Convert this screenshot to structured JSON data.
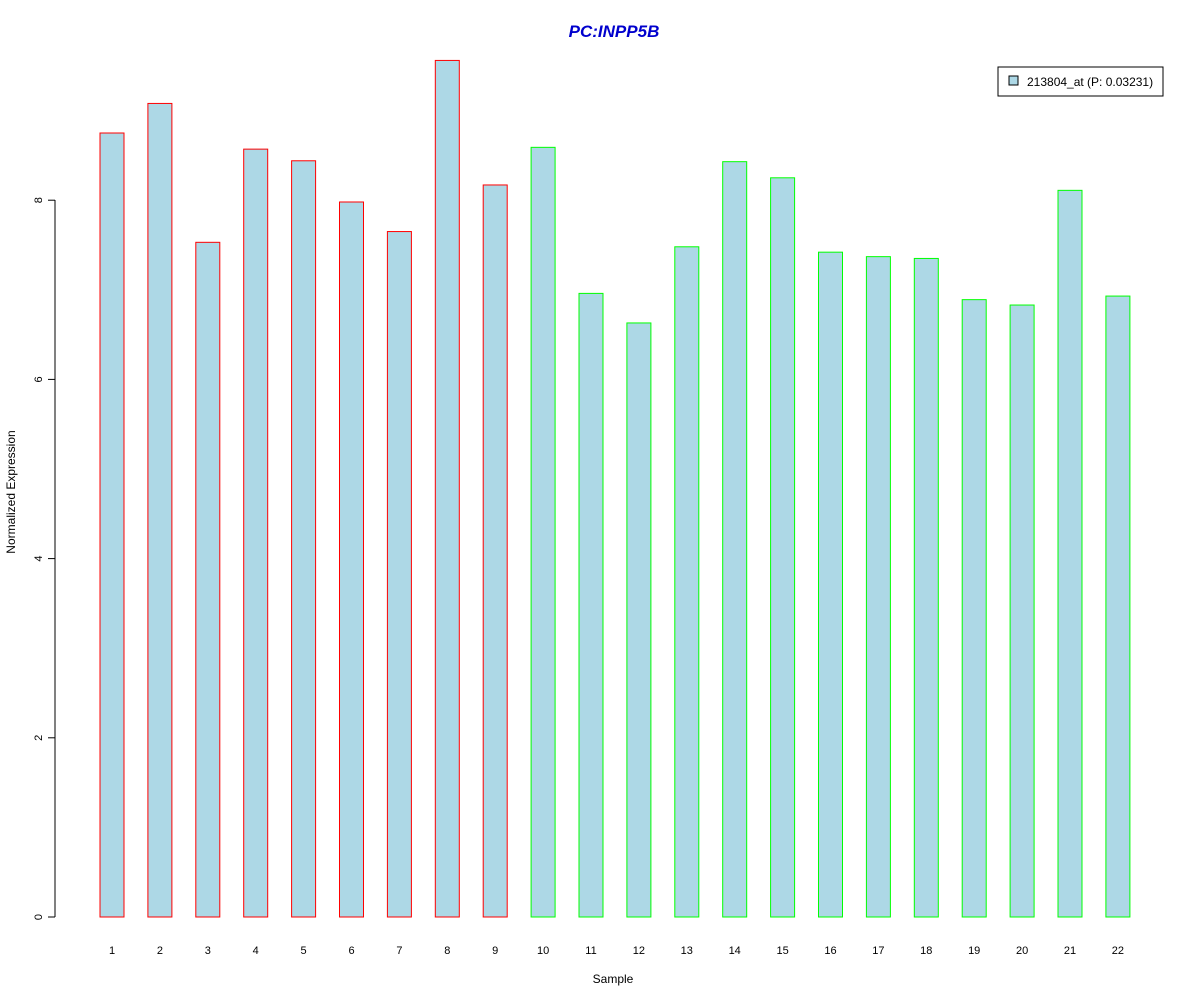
{
  "chart_data": {
    "type": "bar",
    "title": "PC:INPP5B",
    "xlabel": "Sample",
    "ylabel": "Normalized Expression",
    "categories": [
      "1",
      "2",
      "3",
      "4",
      "5",
      "6",
      "7",
      "8",
      "9",
      "10",
      "11",
      "12",
      "13",
      "14",
      "15",
      "16",
      "17",
      "18",
      "19",
      "20",
      "21",
      "22"
    ],
    "series": [
      {
        "name": "213804_at (P: 0.03231)",
        "values": [
          8.75,
          9.08,
          7.53,
          8.57,
          8.44,
          7.98,
          7.65,
          9.56,
          8.17,
          8.59,
          6.96,
          6.63,
          7.48,
          8.43,
          8.25,
          7.42,
          7.37,
          7.35,
          6.89,
          6.83,
          8.11,
          6.93
        ]
      }
    ],
    "bar_groups": [
      "red",
      "red",
      "red",
      "red",
      "red",
      "red",
      "red",
      "red",
      "red",
      "green",
      "green",
      "green",
      "green",
      "green",
      "green",
      "green",
      "green",
      "green",
      "green",
      "green",
      "green",
      "green"
    ],
    "yticks": [
      0,
      2,
      4,
      6,
      8
    ],
    "ylim": [
      0,
      9.56
    ],
    "grid": false,
    "legend_position": "top-right",
    "colors": {
      "bar_fill": "#add8e6",
      "red": "#ff0000",
      "green": "#00ff00",
      "title": "#0000cd",
      "axis": "#000000"
    }
  }
}
